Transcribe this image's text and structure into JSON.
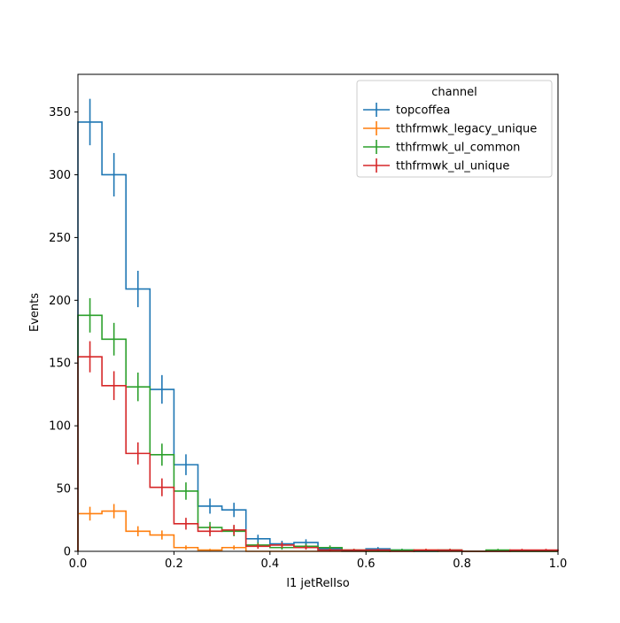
{
  "chart_data": {
    "type": "step-histogram",
    "xlabel": "l1 jetRelIso",
    "ylabel": "Events",
    "xlim": [
      0,
      1.0
    ],
    "ylim": [
      0,
      380
    ],
    "xticks": [
      0,
      0.2,
      0.4,
      0.6,
      0.8,
      1.0
    ],
    "xtick_labels": [
      "0.0",
      "0.2",
      "0.4",
      "0.6",
      "0.8",
      "1.0"
    ],
    "yticks": [
      0,
      50,
      100,
      150,
      200,
      250,
      300,
      350
    ],
    "ytick_labels": [
      "0",
      "50",
      "100",
      "150",
      "200",
      "250",
      "300",
      "350"
    ],
    "grid": false,
    "legend": {
      "title": "channel",
      "placement": "top-right"
    },
    "bin_edges": [
      0,
      0.05,
      0.1,
      0.15,
      0.2,
      0.25,
      0.3,
      0.35,
      0.4,
      0.45,
      0.5,
      0.55,
      0.6,
      0.65,
      0.7,
      0.75,
      0.8,
      0.85,
      0.9,
      0.95,
      1.0
    ],
    "series": [
      {
        "name": "topcoffea",
        "color": "#1f77b4",
        "values": [
          342,
          300,
          209,
          129,
          69,
          36,
          33,
          10,
          6,
          7,
          2,
          0,
          2,
          1,
          0,
          0,
          0,
          0,
          0,
          0
        ],
        "errors": [
          18.5,
          17.3,
          14.5,
          11.4,
          8.3,
          6.0,
          5.7,
          3.2,
          2.4,
          2.6,
          1.4,
          0,
          1.4,
          1.0,
          0,
          0,
          0,
          0,
          0,
          0
        ]
      },
      {
        "name": "tthfrmwk_legacy_unique",
        "color": "#ff7f0e",
        "values": [
          30,
          32,
          16,
          13,
          3,
          1,
          3,
          0,
          0,
          0,
          0,
          0,
          0,
          0,
          1,
          0,
          0,
          0,
          0,
          0
        ],
        "errors": [
          5.5,
          5.7,
          4.0,
          3.6,
          1.7,
          1.0,
          1.7,
          0,
          0,
          0,
          0,
          0,
          0,
          0,
          1.0,
          0,
          0,
          0,
          0,
          0
        ]
      },
      {
        "name": "tthfrmwk_ul_common",
        "color": "#2ca02c",
        "values": [
          188,
          169,
          131,
          77,
          48,
          19,
          16,
          5,
          3,
          4,
          3,
          1,
          0,
          1,
          0,
          1,
          0,
          1,
          0,
          0
        ],
        "errors": [
          13.7,
          13.0,
          11.4,
          8.8,
          6.9,
          4.4,
          4.0,
          2.2,
          1.7,
          2.0,
          1.7,
          1.0,
          0,
          1.0,
          0,
          1.0,
          0,
          1.0,
          0,
          0
        ]
      },
      {
        "name": "tthfrmwk_ul_unique",
        "color": "#d62728",
        "values": [
          155,
          132,
          78,
          51,
          22,
          16,
          17,
          4,
          5,
          3,
          1,
          1,
          1,
          0,
          1,
          1,
          0,
          0,
          1,
          1
        ],
        "errors": [
          12.4,
          11.5,
          8.8,
          7.1,
          4.7,
          4.0,
          4.1,
          2.0,
          2.2,
          1.7,
          1.0,
          1.0,
          1.0,
          0,
          1.0,
          1.0,
          0,
          0,
          1.0,
          1.0
        ]
      }
    ]
  }
}
